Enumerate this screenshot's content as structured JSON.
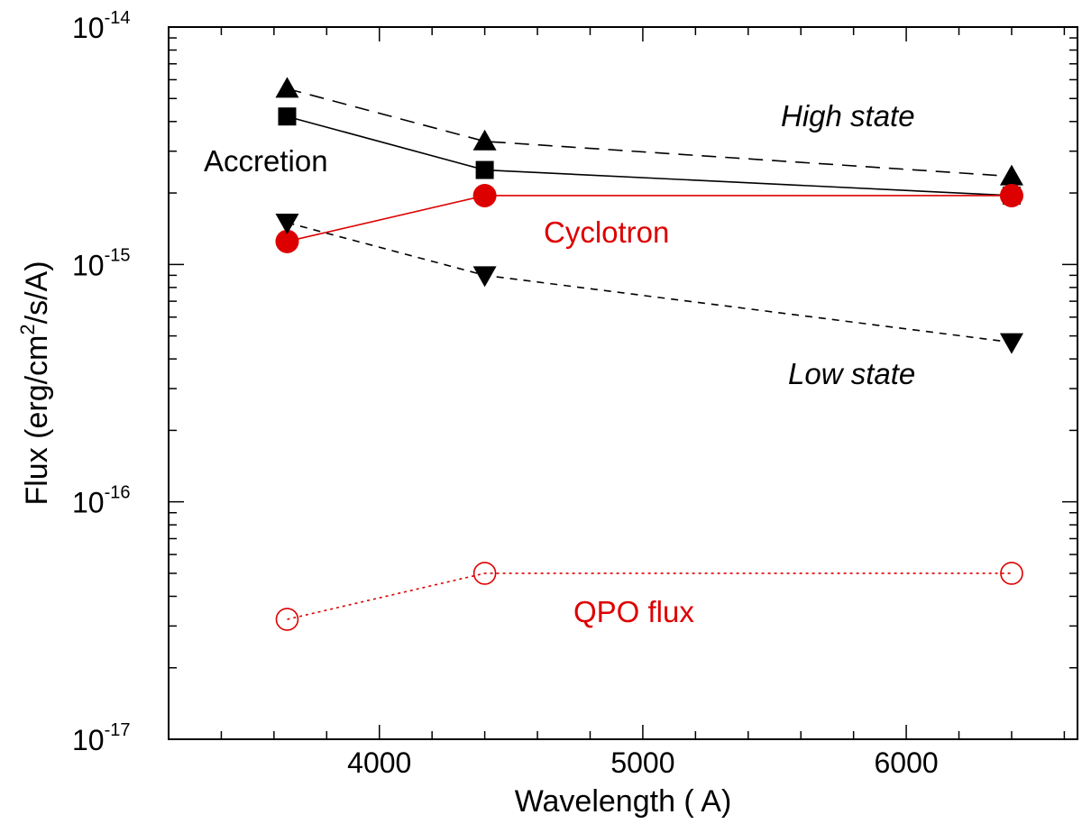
{
  "chart_data": {
    "type": "line",
    "title": "",
    "xlabel": "Wavelength ( A)",
    "ylabel_prefix": "Flux (erg/cm",
    "ylabel_sup": "2",
    "ylabel_suffix": "/s/A)",
    "xlim": [
      3200,
      6650
    ],
    "ylim": [
      1e-17,
      1e-14
    ],
    "yscale": "log",
    "grid": false,
    "x_ticks": [
      {
        "value": 4000,
        "label": "4000"
      },
      {
        "value": 5000,
        "label": "5000"
      },
      {
        "value": 6000,
        "label": "6000"
      }
    ],
    "y_ticks": [
      {
        "value": 1e-14,
        "base": "10",
        "exp": "-14"
      },
      {
        "value": 1e-15,
        "base": "10",
        "exp": "-15"
      },
      {
        "value": 1e-16,
        "base": "10",
        "exp": "-16"
      },
      {
        "value": 1e-17,
        "base": "10",
        "exp": "-17"
      }
    ],
    "series": [
      {
        "name": "High state",
        "x": [
          3650,
          4400,
          6400
        ],
        "y": [
          5.5e-15,
          3.3e-15,
          2.35e-15
        ],
        "color": "#000000",
        "marker": "triangle-up",
        "line": "long-dash"
      },
      {
        "name": "Accretion",
        "x": [
          3650,
          4400,
          6400
        ],
        "y": [
          4.2e-15,
          2.5e-15,
          1.95e-15
        ],
        "color": "#000000",
        "marker": "square",
        "line": "solid"
      },
      {
        "name": "Cyclotron",
        "x": [
          3650,
          4400,
          6400
        ],
        "y": [
          1.25e-15,
          1.95e-15,
          1.95e-15
        ],
        "color": "#dd0000",
        "marker": "circle-filled",
        "line": "solid"
      },
      {
        "name": "Low state",
        "x": [
          3650,
          4400,
          6400
        ],
        "y": [
          1.5e-15,
          9e-16,
          4.7e-16
        ],
        "color": "#000000",
        "marker": "triangle-down",
        "line": "short-dash"
      },
      {
        "name": "QPO flux",
        "x": [
          3650,
          4400,
          6400
        ],
        "y": [
          3.2e-17,
          5e-17,
          5e-17
        ],
        "color": "#dd0000",
        "marker": "circle-open",
        "line": "dotted"
      }
    ],
    "annotations": [
      {
        "text": "High state",
        "italic": true,
        "color": "#000000"
      },
      {
        "text": "Accretion",
        "italic": false,
        "color": "#000000"
      },
      {
        "text": "Cyclotron",
        "italic": false,
        "color": "#dd0000"
      },
      {
        "text": "Low state",
        "italic": true,
        "color": "#000000"
      },
      {
        "text": "QPO flux",
        "italic": false,
        "color": "#dd0000"
      }
    ]
  }
}
